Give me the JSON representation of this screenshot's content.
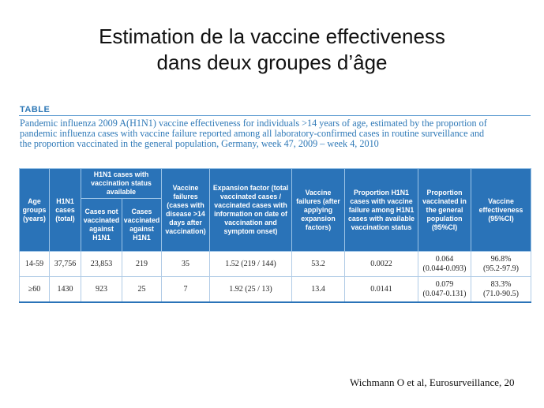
{
  "slide": {
    "title_line1": "Estimation de la vaccine effectiveness",
    "title_line2": "dans deux groupes d’âge",
    "citation": "Wichmann O et al, Eurosurveillance, 20"
  },
  "table": {
    "label": "TABLE",
    "caption_lines": [
      "Pandemic influenza 2009 A(H1N1) vaccine effectiveness for individuals >14 years of age, estimated by the proportion of",
      "pandemic influenza cases with vaccine failure reported among all laboratory-confirmed cases in routine surveillance and",
      "the proportion vaccinated in the general population, Germany, week 47, 2009 – week 4, 2010"
    ],
    "headers": {
      "age_groups": "Age groups (years)",
      "cases_total": "H1N1 cases (total)",
      "vacc_status_group": "H1N1 cases with vaccination status available",
      "not_vaccinated": "Cases not vaccinated against H1N1",
      "vaccinated": "Cases vaccinated against H1N1",
      "vaccine_failures": "Vaccine failures (cases with disease >14 days after vaccination)",
      "expansion_factor": "Expansion factor (total vaccinated cases / vaccinated cases with information on date of vaccination and symptom onset)",
      "failures_after_expansion": "Vaccine failures (after applying expansion factors)",
      "proportion_failure": "Proportion H1N1 cases with vaccine failure among H1N1 cases with available vaccination status",
      "proportion_vaccinated": "Proportion vaccinated in the general population (95%CI)",
      "effectiveness": "Vaccine effectiveness (95%CI)"
    },
    "rows": [
      {
        "age": "14-59",
        "total": "37,756",
        "not_vacc": "23,853",
        "vacc": "219",
        "failures": "35",
        "expansion": "1.52 (219 / 144)",
        "failures_exp": "53.2",
        "prop_failure": "0.0022",
        "prop_vacc": "0.064",
        "prop_vacc_ci": "(0.044-0.093)",
        "ve": "96.8%",
        "ve_ci": "(95.2-97.9)"
      },
      {
        "age": "≥60",
        "total": "1430",
        "not_vacc": "923",
        "vacc": "25",
        "failures": "7",
        "expansion": "1.92 (25 / 13)",
        "failures_exp": "13.4",
        "prop_failure": "0.0141",
        "prop_vacc": "0.079",
        "prop_vacc_ci": "(0.047-0.131)",
        "ve": "83.3%",
        "ve_ci": "(71.0-90.5)"
      }
    ]
  }
}
